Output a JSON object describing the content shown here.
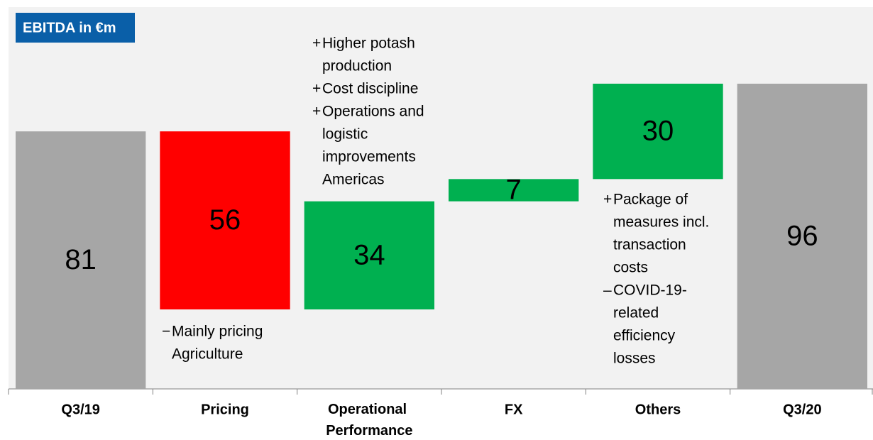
{
  "chart_data": {
    "type": "waterfall",
    "title": "EBITDA in €m",
    "categories": [
      "Q3/19",
      "Pricing",
      "Operational Performance",
      "FX",
      "Others",
      "Q3/20"
    ],
    "values": [
      81,
      -56,
      34,
      7,
      30,
      96
    ],
    "value_labels": [
      "81",
      "56",
      "34",
      "7",
      "30",
      "96"
    ],
    "totals": [
      0,
      5
    ],
    "colors": [
      "#a6a6a6",
      "#ff0000",
      "#00b050",
      "#00b050",
      "#00b050",
      "#a6a6a6"
    ],
    "ylim": [
      0,
      100
    ],
    "annotations": [
      {
        "items": [
          {
            "sign": "−",
            "lines": [
              "Mainly pricing",
              "Agriculture"
            ]
          }
        ]
      },
      {
        "items": [
          {
            "sign": "+",
            "lines": [
              "Higher potash",
              "production"
            ]
          },
          {
            "sign": "+",
            "lines": [
              "Cost discipline"
            ]
          },
          {
            "sign": "+",
            "lines": [
              "Operations and",
              "logistic",
              "improvements",
              "Americas"
            ]
          }
        ]
      },
      {
        "items": [
          {
            "sign": "+",
            "lines": [
              "Package of",
              "measures incl.",
              "transaction",
              "costs"
            ]
          },
          {
            "sign": "–",
            "lines": [
              "COVID-19-",
              "related",
              "efficiency",
              "losses"
            ]
          }
        ]
      }
    ]
  }
}
